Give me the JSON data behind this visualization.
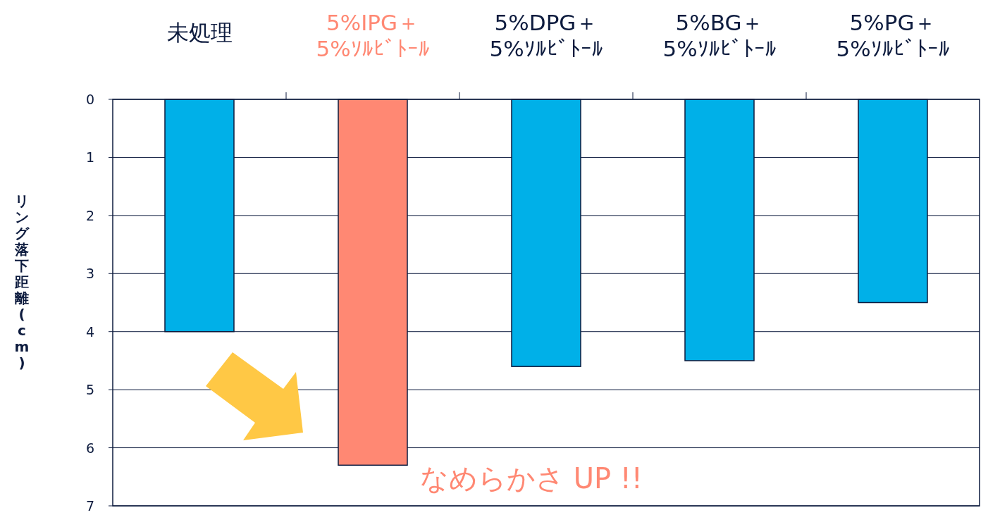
{
  "chart_data": {
    "type": "bar",
    "categories": [
      "未処理",
      "5%IPG＋\n5%ｿﾙﾋﾞﾄｰﾙ",
      "5%DPG＋\n5%ｿﾙﾋﾞﾄｰﾙ",
      "5%BG＋\n5%ｿﾙﾋﾞﾄｰﾙ",
      "5%PG＋\n5%ｿﾙﾋﾞﾄｰﾙ"
    ],
    "values": [
      4.0,
      6.3,
      4.6,
      4.5,
      3.5
    ],
    "colors": [
      "#00b0e8",
      "#ff8873",
      "#00b0e8",
      "#00b0e8",
      "#00b0e8"
    ],
    "ylabel": "リング落下距離(cm)",
    "ylim": [
      7,
      0
    ],
    "yticks": [
      0,
      1,
      2,
      3,
      4,
      5,
      6,
      7
    ],
    "grid": "y",
    "annotations": [
      "なめらかさ UP !!"
    ]
  }
}
